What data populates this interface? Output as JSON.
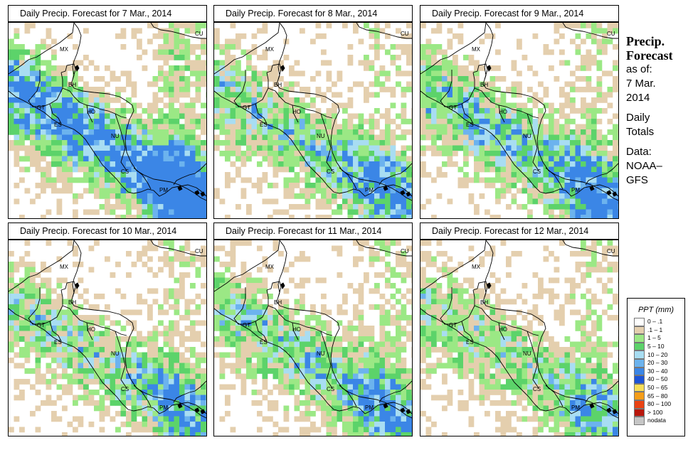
{
  "title_prefix": "Daily Precip. Forecast for",
  "panels": [
    {
      "title": "Daily Precip. Forecast for  7 Mar., 2014",
      "seed": 7,
      "wet": 1.25
    },
    {
      "title": "Daily Precip. Forecast for  8 Mar., 2014",
      "seed": 8,
      "wet": 0.85
    },
    {
      "title": "Daily Precip. Forecast for  9 Mar., 2014",
      "seed": 9,
      "wet": 0.95
    },
    {
      "title": "Daily Precip. Forecast for  10 Mar., 2014",
      "seed": 10,
      "wet": 0.8
    },
    {
      "title": "Daily Precip. Forecast for  11 Mar., 2014",
      "seed": 11,
      "wet": 0.85
    },
    {
      "title": "Daily Precip. Forecast for  12 Mar., 2014",
      "seed": 12,
      "wet": 0.75
    }
  ],
  "country_labels": [
    "MX",
    "BH",
    "GT",
    "HO",
    "ES",
    "NU",
    "CS",
    "PM",
    "CU"
  ],
  "side": {
    "heading_line1": "Precip.",
    "heading_line2": "Forecast",
    "asof_line1": "as of:",
    "asof_line2": "7 Mar.",
    "asof_line3": "2014",
    "daily_line1": "Daily",
    "daily_line2": "Totals",
    "data_line1": "Data:",
    "data_line2": "NOAA–",
    "data_line3": "GFS"
  },
  "legend": {
    "title": "PPT (mm)",
    "items": [
      {
        "label": "0 – .1",
        "color": "#ffffff"
      },
      {
        "label": ".1 – 1",
        "color": "#e4cfae"
      },
      {
        "label": "1 – 5",
        "color": "#9be885"
      },
      {
        "label": "5 – 10",
        "color": "#5cd36a"
      },
      {
        "label": "10 – 20",
        "color": "#a8ddf2"
      },
      {
        "label": "20 – 30",
        "color": "#6cb3ee"
      },
      {
        "label": "30 – 40",
        "color": "#3b86e6"
      },
      {
        "label": "40 – 50",
        "color": "#1c54d8"
      },
      {
        "label": "50 – 65",
        "color": "#f7de57"
      },
      {
        "label": "65 – 80",
        "color": "#f59d18"
      },
      {
        "label": "80 – 100",
        "color": "#e94213"
      },
      {
        "label": "> 100",
        "color": "#b8160c"
      },
      {
        "label": "nodata",
        "color": "#c6c6c6"
      }
    ]
  }
}
